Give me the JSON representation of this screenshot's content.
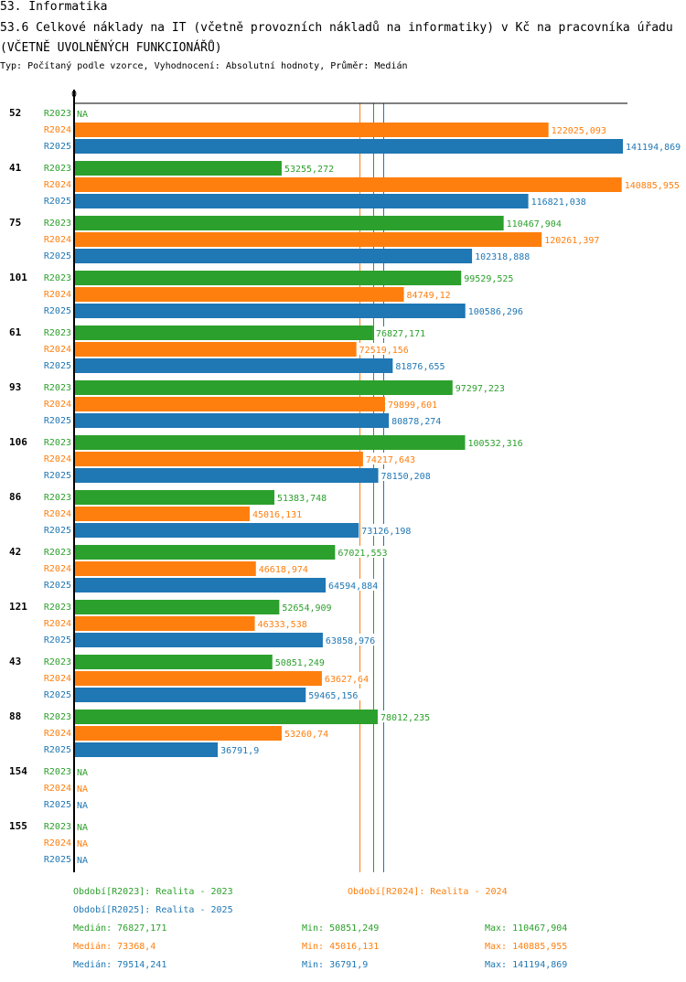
{
  "header": {
    "section_title": "53. Informatika",
    "chart_title": "53.6 Celkové náklady na IT (včetně provozních nákladů na informatiky) v Kč na pracovníka úřadu (VČETNĚ UVOLNĚNÝCH FUNKCIONÁŘŮ)",
    "subtitle": "Typ: Počítaný podle vzorce, Vyhodnocení: Absolutní hodnoty, Průměr: Medián"
  },
  "colors": {
    "R2023": "#2ca02c",
    "R2024": "#ff7f0e",
    "R2025": "#1f77b4",
    "axis": "#000000"
  },
  "chart_data": {
    "type": "bar",
    "orientation": "horizontal",
    "title": "53.6 Celkové náklady na IT (včetně provozních nákladů na informatiky) v Kč na pracovníka úřadu (VČETNĚ UVOLNĚNÝCH FUNKCIONÁŘŮ)",
    "xlabel": "",
    "ylabel": "",
    "axis_zero_label": "0",
    "xlim": [
      0,
      141194.869
    ],
    "grid": false,
    "categories": [
      "52",
      "41",
      "75",
      "101",
      "61",
      "93",
      "106",
      "86",
      "42",
      "121",
      "43",
      "88",
      "154",
      "155"
    ],
    "series": [
      {
        "name": "R2023",
        "color": "#2ca02c",
        "values": [
          null,
          53255.272,
          110467.904,
          99529.525,
          76827.171,
          97297.223,
          100532.316,
          51383.748,
          67021.553,
          52654.909,
          50851.249,
          78012.235,
          null,
          null
        ],
        "labels": [
          "NA",
          "53255,272",
          "110467,904",
          "99529,525",
          "76827,171",
          "97297,223",
          "100532,316",
          "51383,748",
          "67021,553",
          "52654,909",
          "50851,249",
          "78012,235",
          "NA",
          "NA"
        ]
      },
      {
        "name": "R2024",
        "color": "#ff7f0e",
        "values": [
          122025.093,
          140885.955,
          120261.397,
          84749.12,
          72519.156,
          79899.601,
          74217.643,
          45016.131,
          46618.974,
          46333.538,
          63627.64,
          53260.74,
          null,
          null
        ],
        "labels": [
          "122025,093",
          "140885,955",
          "120261,397",
          "84749,12",
          "72519,156",
          "79899,601",
          "74217,643",
          "45016,131",
          "46618,974",
          "46333,538",
          "63627,64",
          "53260,74",
          "NA",
          "NA"
        ]
      },
      {
        "name": "R2025",
        "color": "#1f77b4",
        "values": [
          141194.869,
          116821.038,
          102318.888,
          100586.296,
          81876.655,
          80878.274,
          78150.208,
          73126.198,
          64594.884,
          63858.976,
          59465.156,
          36791.9,
          null,
          null
        ],
        "labels": [
          "141194,869",
          "116821,038",
          "102318,888",
          "100586,296",
          "81876,655",
          "80878,274",
          "78150,208",
          "73126,198",
          "64594,884",
          "63858,976",
          "59465,156",
          "36791,9",
          "NA",
          "NA"
        ]
      }
    ],
    "reference_lines": [
      {
        "series": "R2024",
        "type": "median",
        "value": 73368.4
      },
      {
        "series": "R2023",
        "type": "median",
        "value": 76827.171
      },
      {
        "series": "R2025",
        "type": "median",
        "value": 79514.241
      }
    ],
    "legend": {
      "placement": "bottom",
      "entries": [
        {
          "series": "R2023",
          "text": "Období[R2023]: Realita - 2023"
        },
        {
          "series": "R2024",
          "text": "Období[R2024]: Realita - 2024"
        },
        {
          "series": "R2025",
          "text": "Období[R2025]: Realita - 2025"
        }
      ]
    },
    "stats": [
      {
        "series": "R2023",
        "median": "Medián: 76827,171",
        "min": "Min: 50851,249",
        "max": "Max: 110467,904"
      },
      {
        "series": "R2024",
        "median": "Medián: 73368,4",
        "min": "Min: 45016,131",
        "max": "Max: 140885,955"
      },
      {
        "series": "R2025",
        "median": "Medián: 79514,241",
        "min": "Min: 36791,9",
        "max": "Max: 141194,869"
      }
    ]
  }
}
